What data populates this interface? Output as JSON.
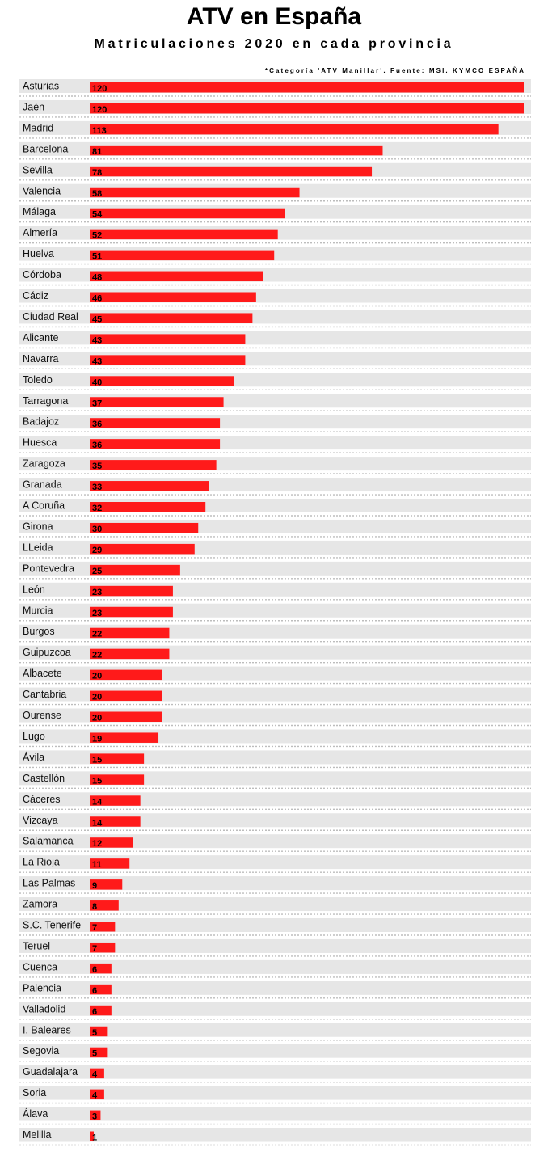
{
  "chart_data": {
    "type": "bar",
    "orientation": "horizontal",
    "title": "ATV en España",
    "subtitle": "Matriculaciones 2020 en cada provincia",
    "note": "*Categoría 'ATV Manillar'. Fuente: MSI. KYMCO ESPAÑA",
    "bar_color": "#ff1a1a",
    "row_bg_color": "#e6e6e6",
    "categories": [
      "Asturias",
      "Jaén",
      "Madrid",
      "Barcelona",
      "Sevilla",
      "Valencia",
      "Málaga",
      "Almería",
      "Huelva",
      "Córdoba",
      "Cádiz",
      "Ciudad Real",
      "Alicante",
      "Navarra",
      "Toledo",
      "Tarragona",
      "Badajoz",
      "Huesca",
      "Zaragoza",
      "Granada",
      "A Coruña",
      "Girona",
      "LLeida",
      "Pontevedra",
      "León",
      "Murcia",
      "Burgos",
      "Guipuzcoa",
      "Albacete",
      "Cantabria",
      "Ourense",
      "Lugo",
      "Ávila",
      "Castellón",
      "Cáceres",
      "Vizcaya",
      "Salamanca",
      "La Rioja",
      "Las Palmas",
      "Zamora",
      "S.C. Tenerife",
      "Teruel",
      "Cuenca",
      "Palencia",
      "Valladolid",
      "I. Baleares",
      "Segovia",
      "Guadalajara",
      "Soria",
      "Álava",
      "Melilla"
    ],
    "values": [
      120,
      120,
      113,
      81,
      78,
      58,
      54,
      52,
      51,
      48,
      46,
      45,
      43,
      43,
      40,
      37,
      36,
      36,
      35,
      33,
      32,
      30,
      29,
      25,
      23,
      23,
      22,
      22,
      20,
      20,
      20,
      19,
      15,
      15,
      14,
      14,
      12,
      11,
      9,
      8,
      7,
      7,
      6,
      6,
      6,
      5,
      5,
      4,
      4,
      3,
      1
    ],
    "xlim": [
      0,
      120
    ]
  }
}
